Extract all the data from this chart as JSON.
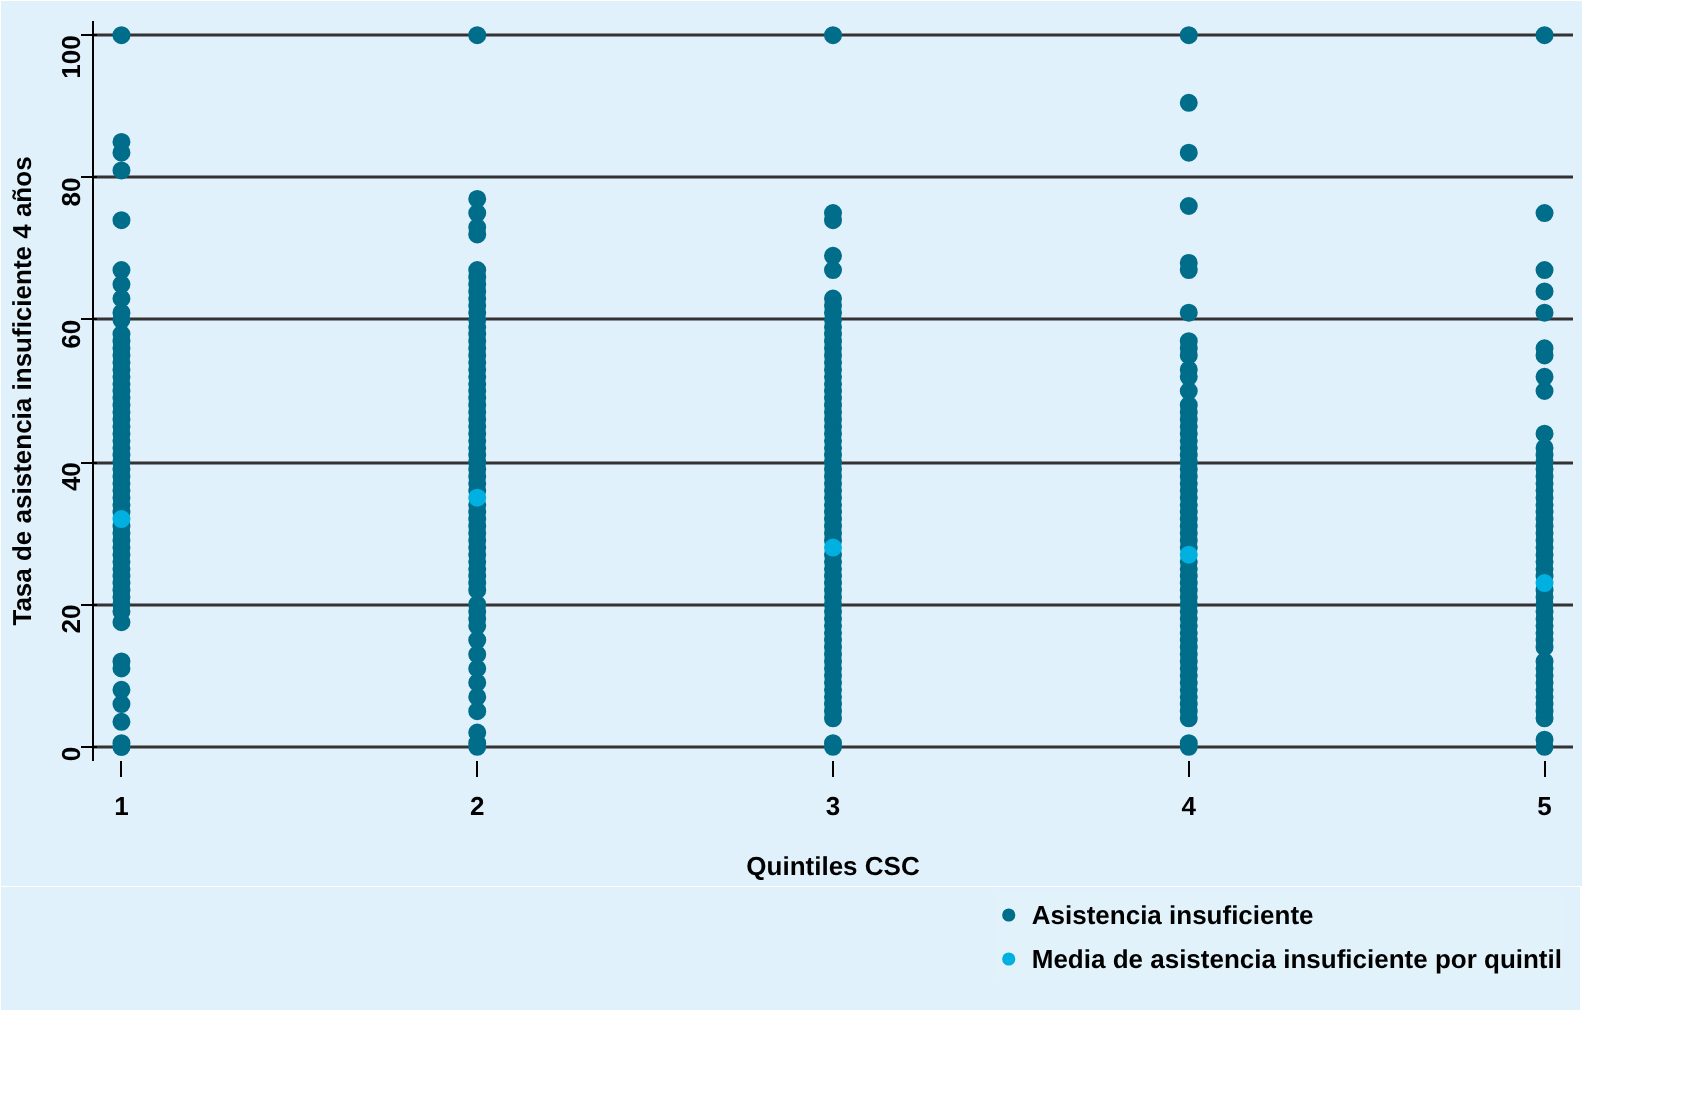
{
  "chart_data": {
    "type": "scatter",
    "xlabel": "Quintiles CSC",
    "ylabel": "Tasa de asistencia insuficiente 4 años",
    "xlim": [
      0.92,
      5.08
    ],
    "ylim": [
      -2,
      102
    ],
    "xticks": [
      1,
      2,
      3,
      4,
      5
    ],
    "yticks": [
      0,
      20,
      40,
      60,
      80,
      100
    ],
    "grid": "y",
    "legend": "bottom right",
    "marker": "circle",
    "series": [
      {
        "name": "Asistencia insuficiente",
        "color": "#006d8a",
        "x": [
          1,
          1,
          1,
          1,
          1,
          1,
          1,
          1,
          1,
          1,
          1,
          1,
          1,
          1,
          1,
          1,
          1,
          1,
          1,
          1,
          1,
          1,
          1,
          1,
          1,
          1,
          1,
          1,
          1,
          1,
          1,
          1,
          1,
          1,
          1,
          1,
          1,
          1,
          1,
          1,
          1,
          1,
          1,
          1,
          1,
          1,
          1,
          1,
          1,
          1,
          1,
          1,
          1,
          1,
          1,
          1,
          1,
          1,
          2,
          2,
          2,
          2,
          2,
          2,
          2,
          2,
          2,
          2,
          2,
          2,
          2,
          2,
          2,
          2,
          2,
          2,
          2,
          2,
          2,
          2,
          2,
          2,
          2,
          2,
          2,
          2,
          2,
          2,
          2,
          2,
          2,
          2,
          2,
          2,
          2,
          2,
          2,
          2,
          2,
          2,
          2,
          2,
          2,
          2,
          2,
          2,
          2,
          2,
          2,
          2,
          2,
          2,
          2,
          2,
          2,
          2,
          2,
          2,
          2,
          2,
          2,
          3,
          3,
          3,
          3,
          3,
          3,
          3,
          3,
          3,
          3,
          3,
          3,
          3,
          3,
          3,
          3,
          3,
          3,
          3,
          3,
          3,
          3,
          3,
          3,
          3,
          3,
          3,
          3,
          3,
          3,
          3,
          3,
          3,
          3,
          3,
          3,
          3,
          3,
          3,
          3,
          3,
          3,
          3,
          3,
          3,
          3,
          3,
          3,
          3,
          3,
          3,
          3,
          3,
          3,
          3,
          3,
          3,
          3,
          3,
          3,
          3,
          3,
          3,
          3,
          3,
          3,
          4,
          4,
          4,
          4,
          4,
          4,
          4,
          4,
          4,
          4,
          4,
          4,
          4,
          4,
          4,
          4,
          4,
          4,
          4,
          4,
          4,
          4,
          4,
          4,
          4,
          4,
          4,
          4,
          4,
          4,
          4,
          4,
          4,
          4,
          4,
          4,
          4,
          4,
          4,
          4,
          4,
          4,
          4,
          4,
          4,
          4,
          4,
          4,
          4,
          4,
          4,
          4,
          4,
          4,
          4,
          4,
          4,
          4,
          4,
          5,
          5,
          5,
          5,
          5,
          5,
          5,
          5,
          5,
          5,
          5,
          5,
          5,
          5,
          5,
          5,
          5,
          5,
          5,
          5,
          5,
          5,
          5,
          5,
          5,
          5,
          5,
          5,
          5,
          5,
          5,
          5,
          5,
          5,
          5,
          5,
          5,
          5,
          5,
          5,
          5,
          5,
          5,
          5,
          5,
          5,
          5,
          5,
          5
        ],
        "values": [
          100,
          85,
          83.5,
          81,
          74,
          67,
          65,
          63,
          61,
          60,
          58,
          57,
          56,
          55,
          54,
          53,
          52,
          51,
          50,
          49,
          48,
          47,
          46,
          45,
          44,
          43,
          42,
          41,
          40,
          39,
          38,
          37,
          36,
          35,
          34,
          33,
          31,
          30,
          29,
          28,
          27,
          26,
          25,
          24,
          23,
          22,
          21,
          20,
          19,
          17.5,
          12,
          11,
          8,
          6,
          3.5,
          0.5,
          0,
          0,
          100,
          77,
          75,
          73,
          72,
          67,
          66,
          65,
          64,
          63,
          62,
          61,
          60,
          59,
          58,
          57,
          56,
          55,
          54,
          53,
          52,
          51,
          50,
          49,
          48,
          47,
          46,
          45,
          44,
          43,
          42,
          41,
          40,
          39,
          38,
          37,
          36,
          34,
          33,
          32,
          31,
          30,
          29,
          28,
          27,
          26,
          25,
          24,
          23,
          22,
          20,
          19,
          18,
          17,
          15,
          13,
          11,
          9,
          7,
          5,
          2,
          0.5,
          0,
          100,
          75,
          74,
          69,
          67,
          63,
          62,
          61,
          60,
          59,
          58,
          57,
          56,
          55,
          54,
          53,
          52,
          51,
          50,
          49,
          48,
          47,
          46,
          45,
          44,
          43,
          42,
          41,
          40,
          39,
          38,
          37,
          36,
          35,
          34,
          33,
          32,
          31,
          30,
          29,
          27,
          26,
          25,
          24,
          23,
          22,
          21,
          20,
          19,
          18,
          17,
          16,
          15,
          14,
          13,
          12,
          11,
          10,
          9,
          8,
          7,
          6,
          5,
          4,
          0.5,
          0,
          100,
          90.5,
          83.5,
          76,
          68,
          67,
          61,
          57,
          56,
          55,
          53,
          52,
          50,
          48,
          47,
          46,
          45,
          44,
          43,
          42,
          41,
          40,
          39,
          38,
          37,
          36,
          35,
          34,
          33,
          32,
          31,
          30,
          29,
          28,
          26,
          25,
          24,
          23,
          22,
          21,
          20,
          19,
          18,
          17,
          16,
          15,
          14,
          13,
          12,
          11,
          10,
          9,
          8,
          7,
          6,
          5,
          4,
          0.5,
          0,
          100,
          75,
          67,
          64,
          61,
          56,
          55,
          52,
          50,
          44,
          42,
          41,
          40,
          39,
          38,
          37,
          36,
          35,
          34,
          33,
          32,
          31,
          30,
          29,
          28,
          27,
          26,
          25,
          24,
          22,
          21,
          20,
          19,
          18,
          17,
          16,
          15,
          14,
          12,
          11,
          10,
          9,
          8,
          7,
          6,
          5,
          4,
          1,
          0
        ]
      },
      {
        "name": "Media de asistencia insuficiente por quintil",
        "color": "#00b0e0",
        "x": [
          1,
          2,
          3,
          4,
          5
        ],
        "values": [
          32,
          35,
          28,
          27,
          23
        ]
      }
    ]
  }
}
